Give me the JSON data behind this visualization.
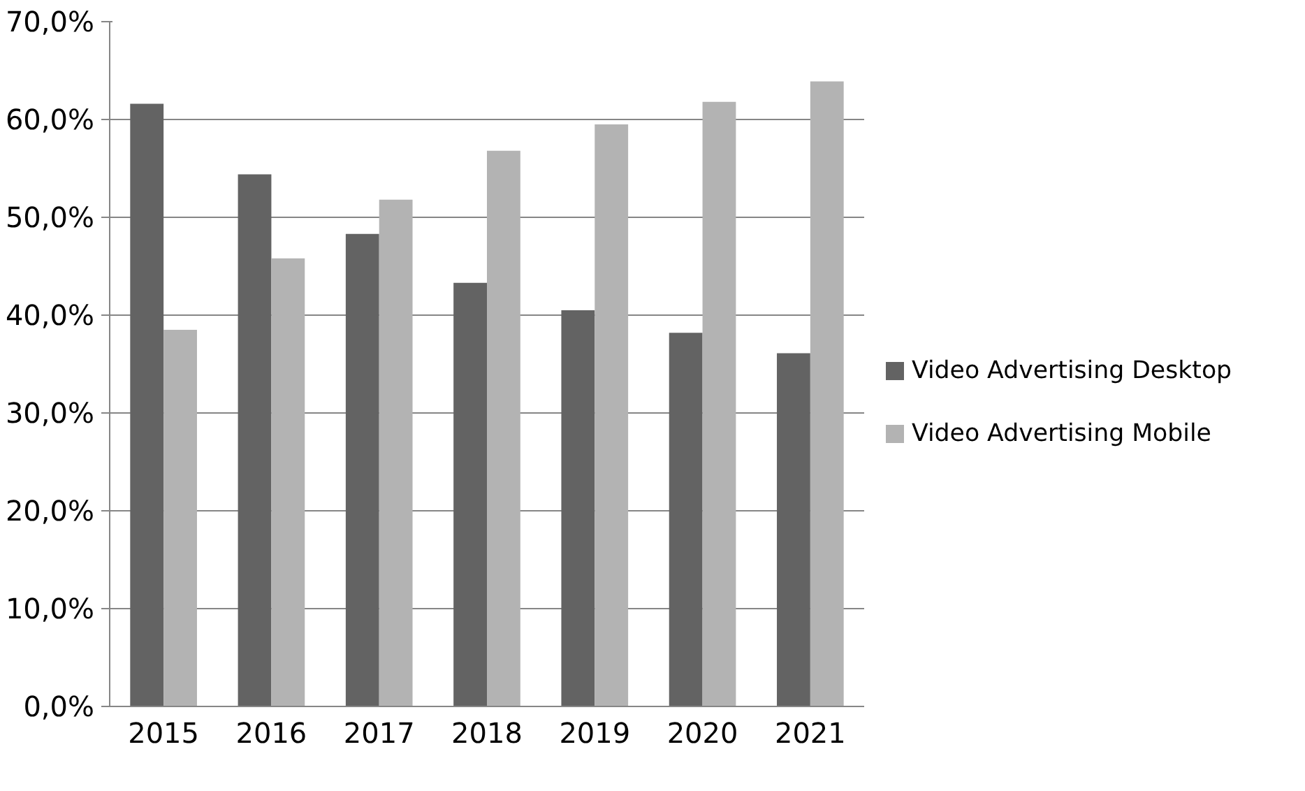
{
  "chart_data": {
    "type": "bar",
    "categories": [
      "2015",
      "2016",
      "2017",
      "2018",
      "2019",
      "2020",
      "2021"
    ],
    "series": [
      {
        "name": "Video Advertising Desktop",
        "color": "#636363",
        "values": [
          61.6,
          54.4,
          48.3,
          43.3,
          40.5,
          38.2,
          36.1
        ]
      },
      {
        "name": "Video Advertising Mobile",
        "color": "#b3b3b3",
        "values": [
          38.5,
          45.8,
          51.8,
          56.8,
          59.5,
          61.8,
          63.9
        ]
      }
    ],
    "ylim": [
      0,
      70
    ],
    "yticks": [
      {
        "value": 0,
        "label": "0,0%"
      },
      {
        "value": 10,
        "label": "10,0%"
      },
      {
        "value": 20,
        "label": "20,0%"
      },
      {
        "value": 30,
        "label": "30,0%"
      },
      {
        "value": 40,
        "label": "40,0%"
      },
      {
        "value": 50,
        "label": "50,0%"
      },
      {
        "value": 60,
        "label": "60,0%"
      },
      {
        "value": 70,
        "label": "70,0%"
      }
    ],
    "grid": "y",
    "legend": "right"
  }
}
